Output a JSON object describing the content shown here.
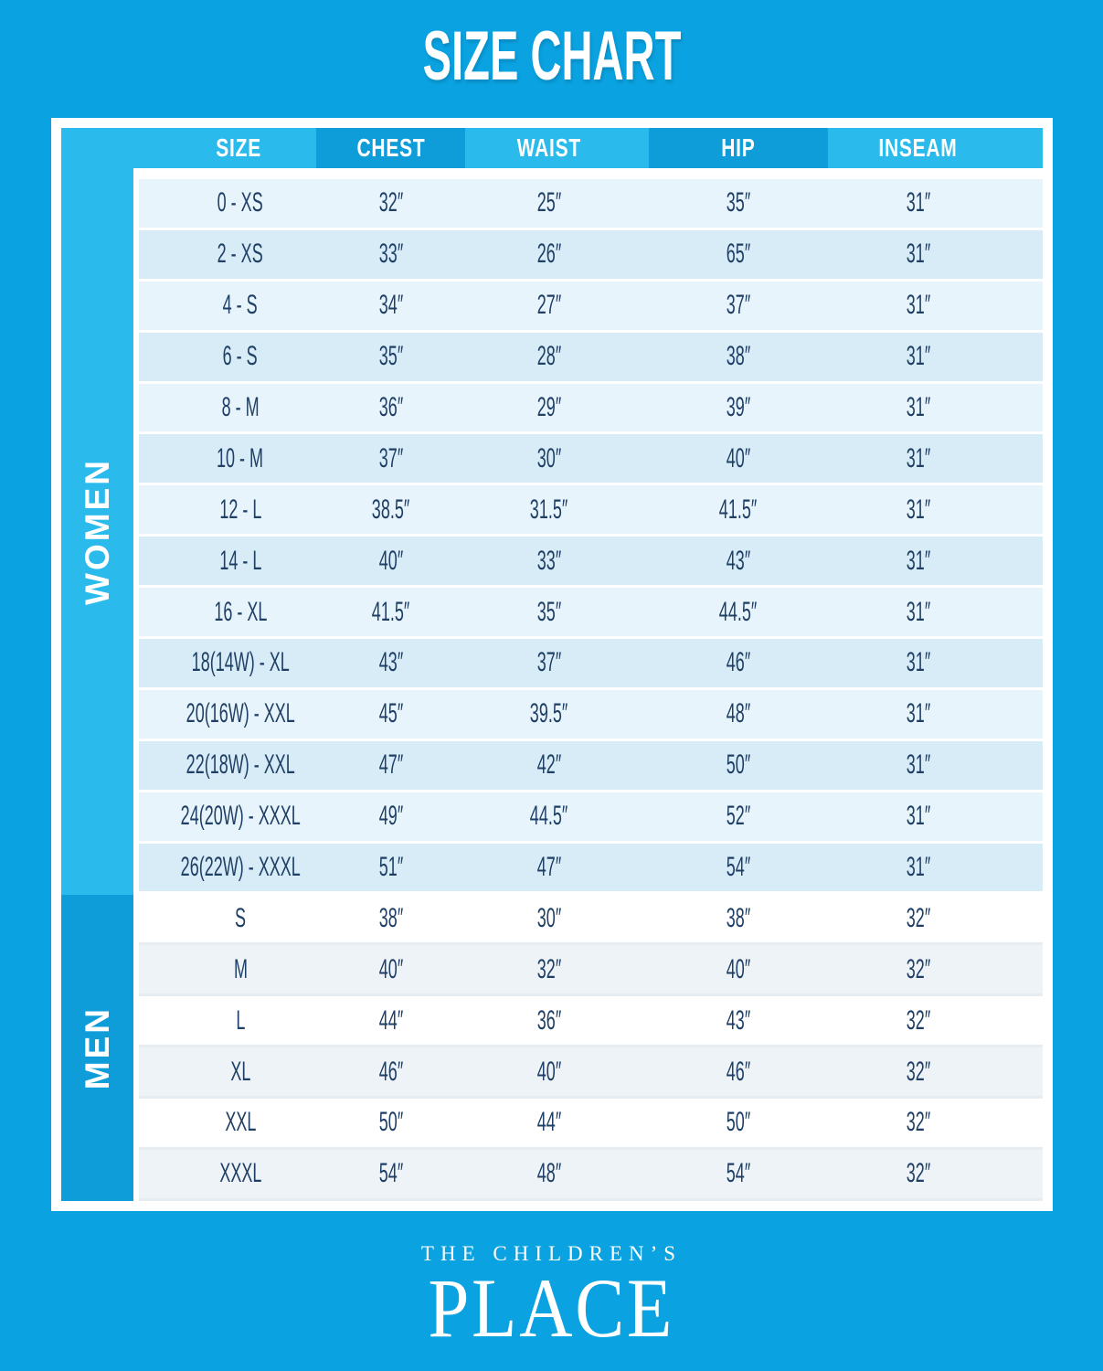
{
  "page": {
    "title": "SIZE CHART"
  },
  "colors": {
    "background": "#0AA2E0",
    "header_light": "#2ABAEB",
    "header_dark": "#0E9DD8",
    "women_row_light": "#E7F4FB",
    "women_row_blue": "#D8ECF7",
    "men_row_white": "#FFFFFF",
    "men_row_gray": "#EDF3F7",
    "text_navy": "#1F3F66",
    "white": "#FFFFFF"
  },
  "table": {
    "columns": [
      "SIZE",
      "CHEST",
      "WAIST",
      "HIP",
      "INSEAM"
    ],
    "sections": [
      {
        "label": "WOMEN",
        "rows": [
          [
            "0 - XS",
            "32″",
            "25″",
            "35″",
            "31″"
          ],
          [
            "2 - XS",
            "33″",
            "26″",
            "65″",
            "31″"
          ],
          [
            "4 - S",
            "34″",
            "27″",
            "37″",
            "31″"
          ],
          [
            "6 - S",
            "35″",
            "28″",
            "38″",
            "31″"
          ],
          [
            "8 - M",
            "36″",
            "29″",
            "39″",
            "31″"
          ],
          [
            "10 - M",
            "37″",
            "30″",
            "40″",
            "31″"
          ],
          [
            "12 - L",
            "38.5″",
            "31.5″",
            "41.5″",
            "31″"
          ],
          [
            "14 - L",
            "40″",
            "33″",
            "43″",
            "31″"
          ],
          [
            "16 - XL",
            "41.5″",
            "35″",
            "44.5″",
            "31″"
          ],
          [
            "18(14W) - XL",
            "43″",
            "37″",
            "46″",
            "31″"
          ],
          [
            "20(16W) - XXL",
            "45″",
            "39.5″",
            "48″",
            "31″"
          ],
          [
            "22(18W) - XXL",
            "47″",
            "42″",
            "50″",
            "31″"
          ],
          [
            "24(20W) - XXXL",
            "49″",
            "44.5″",
            "52″",
            "31″"
          ],
          [
            "26(22W) - XXXL",
            "51″",
            "47″",
            "54″",
            "31″"
          ]
        ]
      },
      {
        "label": "MEN",
        "rows": [
          [
            "S",
            "38″",
            "30″",
            "38″",
            "32″"
          ],
          [
            "M",
            "40″",
            "32″",
            "40″",
            "32″"
          ],
          [
            "L",
            "44″",
            "36″",
            "43″",
            "32″"
          ],
          [
            "XL",
            "46″",
            "40″",
            "46″",
            "32″"
          ],
          [
            "XXL",
            "50″",
            "44″",
            "50″",
            "32″"
          ],
          [
            "XXXL",
            "54″",
            "48″",
            "54″",
            "32″"
          ]
        ]
      }
    ]
  },
  "footer": {
    "brand_line1": "THE CHILDREN’S",
    "brand_line2": "PLACE"
  }
}
